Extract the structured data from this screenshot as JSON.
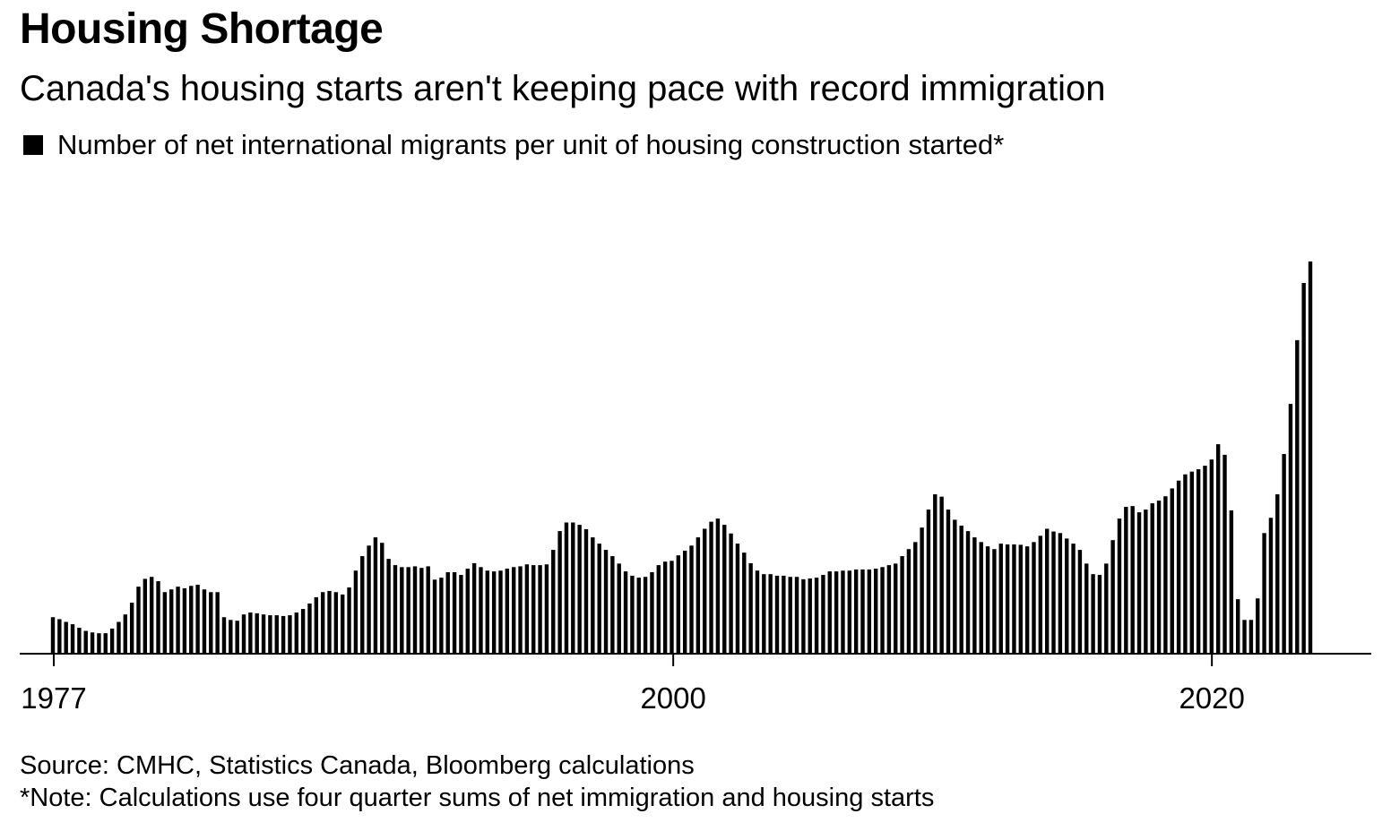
{
  "title": "Housing Shortage",
  "subtitle": "Canada's housing starts aren't keeping pace with record immigration",
  "legend": {
    "label": "Number of net international migrants per unit of housing construction started*",
    "swatch_color": "#000000"
  },
  "footer": {
    "source": "Source: CMHC, Statistics Canada, Bloomberg calculations",
    "note": "*Note: Calculations use four quarter sums of net immigration and housing starts"
  },
  "chart_data": {
    "type": "bar",
    "title": "Housing Shortage",
    "subtitle": "Canada's housing starts aren't keeping pace with record immigration",
    "series": [
      {
        "name": "Number of net international migrants per unit of housing construction started*",
        "color": "#000000"
      }
    ],
    "x_start_year": 1977,
    "quarters_per_year": 4,
    "xticks": [
      1977,
      2000,
      2020
    ],
    "tick_labels": [
      "1977",
      "2000",
      "2020"
    ],
    "xlim": [
      1977,
      2025.5
    ],
    "ylim": [
      0,
      1
    ],
    "y_units": "relative (tallest bar = 1.0)",
    "grid": false,
    "legend_position": "top-left",
    "values": [
      0.091,
      0.086,
      0.079,
      0.073,
      0.064,
      0.056,
      0.052,
      0.05,
      0.05,
      0.062,
      0.079,
      0.098,
      0.128,
      0.169,
      0.189,
      0.194,
      0.183,
      0.155,
      0.162,
      0.169,
      0.165,
      0.171,
      0.174,
      0.162,
      0.155,
      0.155,
      0.091,
      0.084,
      0.082,
      0.098,
      0.103,
      0.101,
      0.098,
      0.096,
      0.096,
      0.094,
      0.096,
      0.103,
      0.112,
      0.126,
      0.142,
      0.155,
      0.158,
      0.155,
      0.149,
      0.167,
      0.21,
      0.247,
      0.274,
      0.295,
      0.281,
      0.24,
      0.224,
      0.219,
      0.219,
      0.221,
      0.217,
      0.221,
      0.187,
      0.192,
      0.206,
      0.206,
      0.199,
      0.215,
      0.229,
      0.219,
      0.21,
      0.208,
      0.21,
      0.215,
      0.219,
      0.221,
      0.226,
      0.224,
      0.224,
      0.226,
      0.263,
      0.311,
      0.333,
      0.333,
      0.327,
      0.316,
      0.295,
      0.279,
      0.263,
      0.247,
      0.228,
      0.208,
      0.197,
      0.192,
      0.194,
      0.206,
      0.224,
      0.233,
      0.235,
      0.249,
      0.261,
      0.274,
      0.295,
      0.317,
      0.335,
      0.343,
      0.327,
      0.305,
      0.279,
      0.256,
      0.229,
      0.21,
      0.201,
      0.201,
      0.197,
      0.197,
      0.194,
      0.194,
      0.188,
      0.19,
      0.192,
      0.199,
      0.208,
      0.208,
      0.21,
      0.21,
      0.213,
      0.213,
      0.213,
      0.215,
      0.219,
      0.224,
      0.228,
      0.247,
      0.265,
      0.283,
      0.32,
      0.366,
      0.405,
      0.399,
      0.366,
      0.34,
      0.325,
      0.311,
      0.295,
      0.283,
      0.272,
      0.265,
      0.279,
      0.277,
      0.277,
      0.276,
      0.272,
      0.283,
      0.299,
      0.317,
      0.31,
      0.306,
      0.292,
      0.279,
      0.263,
      0.228,
      0.201,
      0.199,
      0.228,
      0.288,
      0.343,
      0.373,
      0.375,
      0.359,
      0.366,
      0.382,
      0.389,
      0.4,
      0.42,
      0.44,
      0.456,
      0.463,
      0.469,
      0.478,
      0.494,
      0.533,
      0.506,
      0.364,
      0.137,
      0.084,
      0.084,
      0.139,
      0.306,
      0.345,
      0.405,
      0.508,
      0.636,
      0.799,
      0.945,
      1.0
    ]
  }
}
